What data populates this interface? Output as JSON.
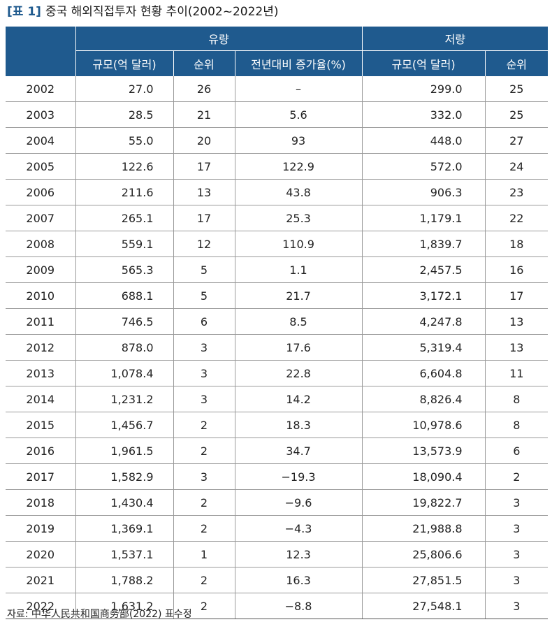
{
  "caption": {
    "tag": "[표 1]",
    "title": "중국 해외직접투자 현황 추이(2002~2022년)"
  },
  "table": {
    "group_headers": {
      "flow": "유량",
      "stock": "저량"
    },
    "columns": {
      "flow_size": "규모(억 달러)",
      "flow_rank": "순위",
      "flow_growth": "전년대비 증가율(%)",
      "stock_size": "규모(억 달러)",
      "stock_rank": "순위"
    },
    "rows": [
      {
        "year": "2002",
        "flow_size": "27.0",
        "flow_rank": "26",
        "flow_growth": "–",
        "stock_size": "299.0",
        "stock_rank": "25"
      },
      {
        "year": "2003",
        "flow_size": "28.5",
        "flow_rank": "21",
        "flow_growth": "5.6",
        "stock_size": "332.0",
        "stock_rank": "25"
      },
      {
        "year": "2004",
        "flow_size": "55.0",
        "flow_rank": "20",
        "flow_growth": "93",
        "stock_size": "448.0",
        "stock_rank": "27"
      },
      {
        "year": "2005",
        "flow_size": "122.6",
        "flow_rank": "17",
        "flow_growth": "122.9",
        "stock_size": "572.0",
        "stock_rank": "24"
      },
      {
        "year": "2006",
        "flow_size": "211.6",
        "flow_rank": "13",
        "flow_growth": "43.8",
        "stock_size": "906.3",
        "stock_rank": "23"
      },
      {
        "year": "2007",
        "flow_size": "265.1",
        "flow_rank": "17",
        "flow_growth": "25.3",
        "stock_size": "1,179.1",
        "stock_rank": "22"
      },
      {
        "year": "2008",
        "flow_size": "559.1",
        "flow_rank": "12",
        "flow_growth": "110.9",
        "stock_size": "1,839.7",
        "stock_rank": "18"
      },
      {
        "year": "2009",
        "flow_size": "565.3",
        "flow_rank": "5",
        "flow_growth": "1.1",
        "stock_size": "2,457.5",
        "stock_rank": "16"
      },
      {
        "year": "2010",
        "flow_size": "688.1",
        "flow_rank": "5",
        "flow_growth": "21.7",
        "stock_size": "3,172.1",
        "stock_rank": "17"
      },
      {
        "year": "2011",
        "flow_size": "746.5",
        "flow_rank": "6",
        "flow_growth": "8.5",
        "stock_size": "4,247.8",
        "stock_rank": "13"
      },
      {
        "year": "2012",
        "flow_size": "878.0",
        "flow_rank": "3",
        "flow_growth": "17.6",
        "stock_size": "5,319.4",
        "stock_rank": "13"
      },
      {
        "year": "2013",
        "flow_size": "1,078.4",
        "flow_rank": "3",
        "flow_growth": "22.8",
        "stock_size": "6,604.8",
        "stock_rank": "11"
      },
      {
        "year": "2014",
        "flow_size": "1,231.2",
        "flow_rank": "3",
        "flow_growth": "14.2",
        "stock_size": "8,826.4",
        "stock_rank": "8"
      },
      {
        "year": "2015",
        "flow_size": "1,456.7",
        "flow_rank": "2",
        "flow_growth": "18.3",
        "stock_size": "10,978.6",
        "stock_rank": "8"
      },
      {
        "year": "2016",
        "flow_size": "1,961.5",
        "flow_rank": "2",
        "flow_growth": "34.7",
        "stock_size": "13,573.9",
        "stock_rank": "6"
      },
      {
        "year": "2017",
        "flow_size": "1,582.9",
        "flow_rank": "3",
        "flow_growth": "−19.3",
        "stock_size": "18,090.4",
        "stock_rank": "2"
      },
      {
        "year": "2018",
        "flow_size": "1,430.4",
        "flow_rank": "2",
        "flow_growth": "−9.6",
        "stock_size": "19,822.7",
        "stock_rank": "3"
      },
      {
        "year": "2019",
        "flow_size": "1,369.1",
        "flow_rank": "2",
        "flow_growth": "−4.3",
        "stock_size": "21,988.8",
        "stock_rank": "3"
      },
      {
        "year": "2020",
        "flow_size": "1,537.1",
        "flow_rank": "1",
        "flow_growth": "12.3",
        "stock_size": "25,806.6",
        "stock_rank": "3"
      },
      {
        "year": "2021",
        "flow_size": "1,788.2",
        "flow_rank": "2",
        "flow_growth": "16.3",
        "stock_size": "27,851.5",
        "stock_rank": "3"
      },
      {
        "year": "2022",
        "flow_size": "1,631.2",
        "flow_rank": "2",
        "flow_growth": "−8.8",
        "stock_size": "27,548.1",
        "stock_rank": "3"
      }
    ]
  },
  "source": "자료: 中华人民共和国商务部(2022) 표수정",
  "colors": {
    "header_bg": "#1f5a8e",
    "header_text": "#ffffff"
  }
}
